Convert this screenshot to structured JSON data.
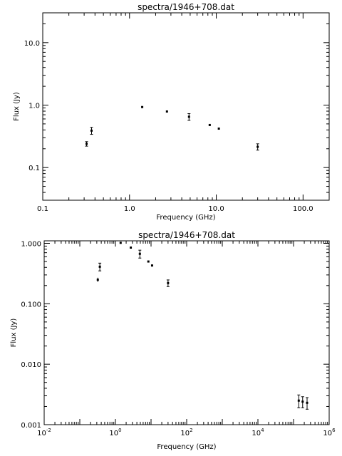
{
  "chart_data": [
    {
      "type": "scatter",
      "title": "spectra/1946+708.dat",
      "xlabel": "Frequency (GHz)",
      "ylabel": "Flux (Jy)",
      "xscale": "log",
      "yscale": "log",
      "xlim": [
        0.1,
        200
      ],
      "ylim": [
        0.03,
        30
      ],
      "xticks": [
        {
          "value": 0.1,
          "label": "0.1"
        },
        {
          "value": 1,
          "label": "1.0"
        },
        {
          "value": 10,
          "label": "10.0"
        },
        {
          "value": 100,
          "label": "100.0"
        }
      ],
      "yticks": [
        {
          "value": 0.1,
          "label": "0.1"
        },
        {
          "value": 1,
          "label": "1.0"
        },
        {
          "value": 10,
          "label": "10.0"
        }
      ],
      "points": [
        {
          "x": 0.32,
          "y": 0.24,
          "err": 0.02
        },
        {
          "x": 0.365,
          "y": 0.39,
          "err": 0.05
        },
        {
          "x": 1.4,
          "y": 0.93,
          "err": 0.02
        },
        {
          "x": 2.7,
          "y": 0.79,
          "err": 0.02
        },
        {
          "x": 4.85,
          "y": 0.65,
          "err": 0.08
        },
        {
          "x": 8.4,
          "y": 0.48,
          "err": 0.01
        },
        {
          "x": 10.7,
          "y": 0.42,
          "err": 0.01
        },
        {
          "x": 30,
          "y": 0.215,
          "err": 0.025
        }
      ]
    },
    {
      "type": "scatter",
      "title": "spectra/1946+708.dat",
      "xlabel": "Frequency (GHz)",
      "ylabel": "Flux (Jy)",
      "xscale": "log",
      "yscale": "log",
      "xlim": [
        0.01,
        1000000
      ],
      "ylim": [
        0.001,
        1.1
      ],
      "xticks": [
        {
          "value": 0.01,
          "label": "10",
          "exp": "-2"
        },
        {
          "value": 1,
          "label": "10",
          "exp": "0"
        },
        {
          "value": 100,
          "label": "10",
          "exp": "2"
        },
        {
          "value": 10000,
          "label": "10",
          "exp": "4"
        },
        {
          "value": 1000000,
          "label": "10",
          "exp": "6"
        }
      ],
      "yticks": [
        {
          "value": 0.001,
          "label": "0.001"
        },
        {
          "value": 0.01,
          "label": "0.010"
        },
        {
          "value": 0.1,
          "label": "0.100"
        },
        {
          "value": 1,
          "label": "1.000"
        }
      ],
      "points": [
        {
          "x": 0.32,
          "y": 0.25,
          "err": 0.02
        },
        {
          "x": 0.365,
          "y": 0.41,
          "err": 0.06
        },
        {
          "x": 1.4,
          "y": 1.02,
          "err": 0.02
        },
        {
          "x": 2.7,
          "y": 0.85,
          "err": 0.02
        },
        {
          "x": 4.85,
          "y": 0.67,
          "err": 0.1
        },
        {
          "x": 8.4,
          "y": 0.5,
          "err": 0.01
        },
        {
          "x": 10.7,
          "y": 0.43,
          "err": 0.01
        },
        {
          "x": 30,
          "y": 0.22,
          "err": 0.028
        },
        {
          "x": 140000,
          "y": 0.0025,
          "err": 0.0006
        },
        {
          "x": 180000,
          "y": 0.0024,
          "err": 0.0005
        },
        {
          "x": 240000,
          "y": 0.0023,
          "err": 0.0005
        }
      ]
    }
  ]
}
